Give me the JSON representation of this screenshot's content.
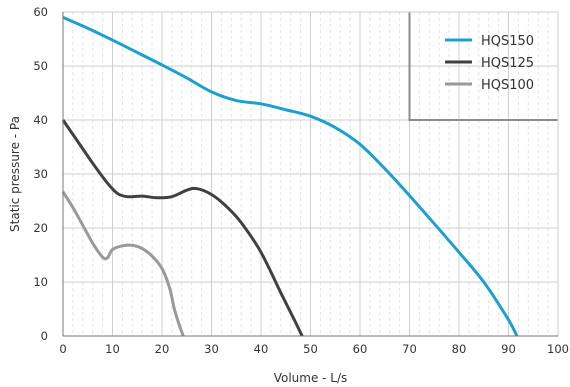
{
  "chart_data": {
    "type": "line",
    "xlabel": "Volume - L/s",
    "ylabel": "Static pressure - Pa",
    "xlim": [
      0,
      100
    ],
    "ylim": [
      0,
      60
    ],
    "x_ticks": [
      0,
      10,
      20,
      30,
      40,
      50,
      60,
      70,
      80,
      90,
      100
    ],
    "y_ticks": [
      0,
      10,
      20,
      30,
      40,
      50,
      60
    ],
    "x_ticks_labels": [
      "0",
      "10",
      "20",
      "30",
      "40",
      "50",
      "60",
      "70",
      "80",
      "90",
      "100"
    ],
    "y_ticks_labels": [
      "0",
      "10",
      "20",
      "30",
      "40",
      "50",
      "60"
    ],
    "grid": true,
    "legend_position": "top-right",
    "limit_line": {
      "color": "#8c8c8c",
      "points": [
        [
          70,
          60
        ],
        [
          70,
          40
        ],
        [
          100,
          40
        ]
      ]
    },
    "series": [
      {
        "name": "HQS150",
        "color": "#1ba0d0",
        "points": [
          [
            0,
            59
          ],
          [
            5,
            57
          ],
          [
            10,
            54.8
          ],
          [
            15,
            52.5
          ],
          [
            20,
            50.2
          ],
          [
            25,
            47.8
          ],
          [
            30,
            45.2
          ],
          [
            35,
            43.6
          ],
          [
            40,
            43
          ],
          [
            45,
            41.9
          ],
          [
            50,
            40.7
          ],
          [
            55,
            38.6
          ],
          [
            60,
            35.5
          ],
          [
            65,
            31
          ],
          [
            70,
            26
          ],
          [
            75,
            20.8
          ],
          [
            80,
            15.5
          ],
          [
            85,
            10
          ],
          [
            90,
            3
          ],
          [
            91.7,
            0
          ]
        ]
      },
      {
        "name": "HQS125",
        "color": "#404040",
        "points": [
          [
            0,
            40
          ],
          [
            3,
            36
          ],
          [
            6,
            32
          ],
          [
            9,
            28.3
          ],
          [
            11,
            26.4
          ],
          [
            13,
            25.8
          ],
          [
            16,
            25.9
          ],
          [
            19,
            25.6
          ],
          [
            22,
            25.8
          ],
          [
            25,
            27
          ],
          [
            27,
            27.3
          ],
          [
            30,
            26.2
          ],
          [
            33,
            24
          ],
          [
            36,
            21
          ],
          [
            40,
            15.5
          ],
          [
            44,
            8
          ],
          [
            47,
            2.5
          ],
          [
            48.3,
            0
          ]
        ]
      },
      {
        "name": "HQS100",
        "color": "#999999",
        "points": [
          [
            0,
            26.7
          ],
          [
            2,
            23.8
          ],
          [
            4,
            20.5
          ],
          [
            6,
            17.2
          ],
          [
            8,
            14.6
          ],
          [
            9,
            14.5
          ],
          [
            10,
            16
          ],
          [
            12,
            16.7
          ],
          [
            14,
            16.8
          ],
          [
            16,
            16.2
          ],
          [
            18,
            14.8
          ],
          [
            20,
            12.5
          ],
          [
            21.5,
            9
          ],
          [
            22.5,
            5
          ],
          [
            23.5,
            2
          ],
          [
            24.3,
            0
          ]
        ]
      }
    ]
  }
}
